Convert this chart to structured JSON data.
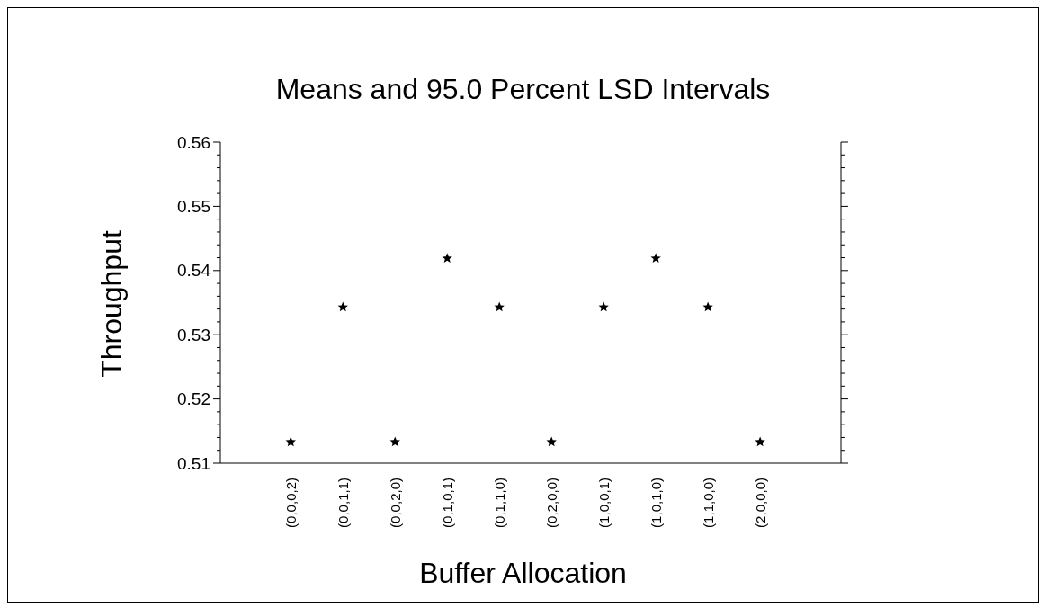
{
  "chart_data": {
    "type": "scatter",
    "title": "Means and 95.0 Percent LSD Intervals",
    "xlabel": "Buffer Allocation",
    "ylabel": "Throughput",
    "categories": [
      "(0,0,0,2)",
      "(0,0,1,1)",
      "(0,0,2,0)",
      "(0,1,0,1)",
      "(0,1,1,0)",
      "(0,2,0,0)",
      "(1,0,0,1)",
      "(1,0,1,0)",
      "(1,1,0,0)",
      "(2,0,0,0)"
    ],
    "values": [
      0.5133,
      0.5343,
      0.5133,
      0.5419,
      0.5343,
      0.5133,
      0.5343,
      0.5419,
      0.5343,
      0.5133
    ],
    "color": "#000000",
    "marker": "star",
    "ylim": [
      0.51,
      0.56
    ],
    "yticks": [
      0.51,
      0.52,
      0.53,
      0.54,
      0.55,
      0.56
    ],
    "grid": false
  }
}
